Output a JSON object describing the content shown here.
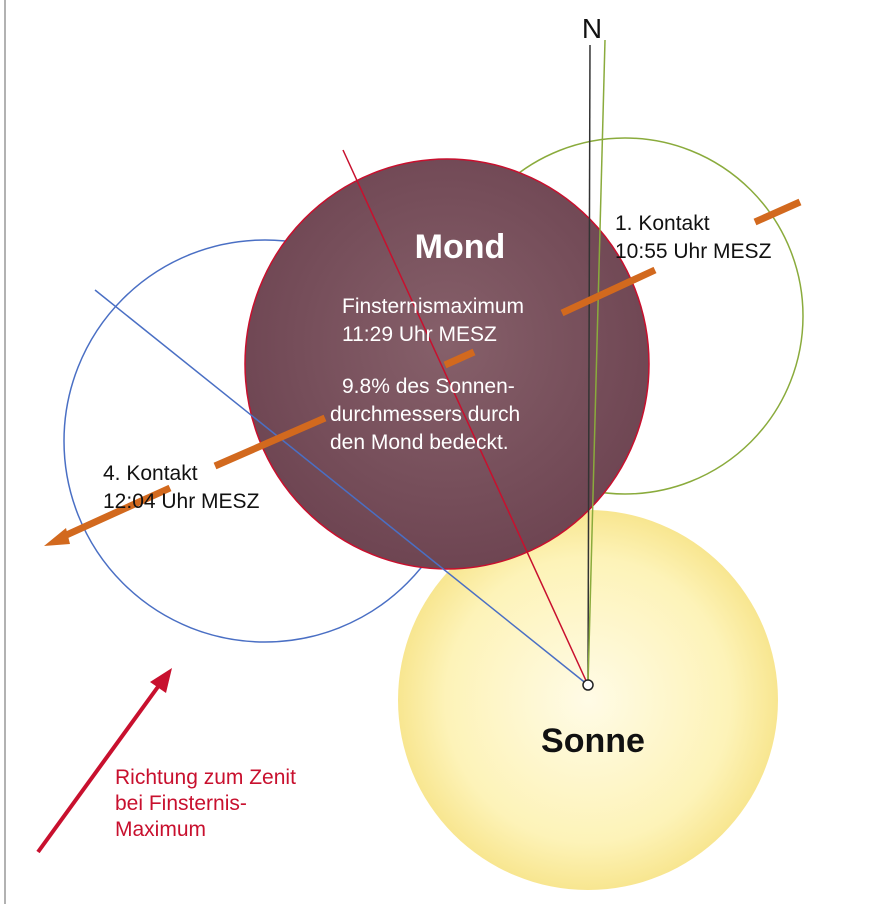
{
  "north": "N",
  "moon": {
    "label": "Mond",
    "maximum": [
      "Finsternismaximum",
      "11:29 Uhr MESZ"
    ],
    "coverage": [
      "9.8% des Sonnen-",
      "durchmessers durch",
      "den Mond bedeckt."
    ]
  },
  "first_contact": [
    "1. Kontakt",
    "10:55 Uhr MESZ"
  ],
  "fourth_contact": [
    "4. Kontakt",
    "12:04 Uhr MESZ"
  ],
  "sun": {
    "label": "Sonne"
  },
  "zenith": [
    "Richtung zum Zenit",
    "bei Finsternis-",
    "Maximum"
  ]
}
